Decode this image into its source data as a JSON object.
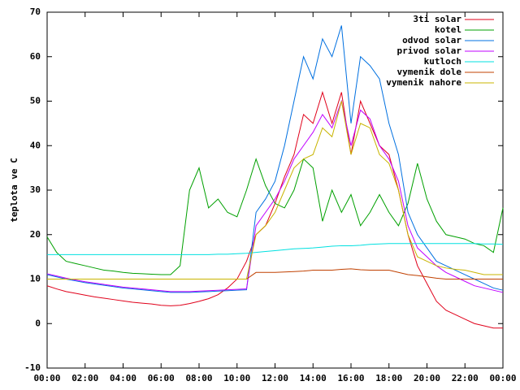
{
  "chart_data": {
    "type": "line",
    "ylabel": "teplota ve C",
    "legend": "top-right",
    "x": [
      0,
      0.5,
      1,
      1.5,
      2,
      2.5,
      3,
      3.5,
      4,
      4.5,
      5,
      5.5,
      6,
      6.5,
      7,
      7.5,
      8,
      8.5,
      9,
      9.5,
      10,
      10.5,
      11,
      11.5,
      12,
      12.5,
      13,
      13.5,
      14,
      14.5,
      15,
      15.5,
      16,
      16.5,
      17,
      17.5,
      18,
      18.5,
      19,
      19.5,
      20,
      20.5,
      21,
      21.5,
      22,
      22.5,
      23,
      23.5,
      24
    ],
    "xlim": [
      0,
      24
    ],
    "xticks": [
      {
        "value": 0,
        "label": "00:00"
      },
      {
        "value": 2,
        "label": "02:00"
      },
      {
        "value": 4,
        "label": "04:00"
      },
      {
        "value": 6,
        "label": "06:00"
      },
      {
        "value": 8,
        "label": "08:00"
      },
      {
        "value": 10,
        "label": "10:00"
      },
      {
        "value": 12,
        "label": "12:00"
      },
      {
        "value": 14,
        "label": "14:00"
      },
      {
        "value": 16,
        "label": "16:00"
      },
      {
        "value": 18,
        "label": "18:00"
      },
      {
        "value": 20,
        "label": "20:00"
      },
      {
        "value": 22,
        "label": "22:00"
      },
      {
        "value": 24,
        "label": "00:00"
      }
    ],
    "ylim": [
      -10,
      70
    ],
    "yticks": [
      -10,
      0,
      10,
      20,
      30,
      40,
      50,
      60,
      70
    ],
    "series": [
      {
        "name": "3ti solar",
        "color": "#e0001a",
        "values": [
          8.5,
          7.8,
          7.2,
          6.8,
          6.4,
          6.0,
          5.7,
          5.4,
          5.1,
          4.8,
          4.6,
          4.4,
          4.1,
          4.0,
          4.1,
          4.5,
          5.0,
          5.6,
          6.5,
          8,
          10,
          14,
          20,
          22,
          27,
          33,
          38,
          47,
          45,
          52,
          45,
          52,
          38,
          50,
          45,
          40,
          38,
          30,
          20,
          13,
          9,
          5,
          3,
          2,
          1,
          0,
          -0.5,
          -1,
          -1
        ]
      },
      {
        "name": "kotel",
        "color": "#00a000",
        "values": [
          19.5,
          16,
          14,
          13.5,
          13,
          12.5,
          12,
          11.8,
          11.5,
          11.3,
          11.2,
          11.1,
          11,
          11,
          13,
          30,
          35,
          26,
          28,
          25,
          24,
          30,
          37,
          31,
          27,
          26,
          30,
          37,
          35,
          23,
          30,
          25,
          29,
          22,
          25,
          29,
          25,
          22,
          27,
          36,
          28,
          23,
          20,
          19.5,
          19,
          18,
          17.5,
          16,
          26
        ]
      },
      {
        "name": "odvod solar",
        "color": "#0070e0",
        "values": [
          11,
          10.5,
          10,
          9.6,
          9.2,
          8.9,
          8.6,
          8.3,
          8,
          7.8,
          7.6,
          7.4,
          7.2,
          7,
          7,
          7,
          7.1,
          7.2,
          7.3,
          7.4,
          7.5,
          7.6,
          25,
          28,
          32,
          40,
          50,
          60,
          55,
          64,
          60,
          67,
          45,
          60,
          58,
          55,
          45,
          38,
          25,
          20,
          17,
          14,
          13,
          12,
          11,
          10,
          9,
          8,
          7.5
        ]
      },
      {
        "name": "privod solar",
        "color": "#c000ff",
        "values": [
          11.2,
          10.7,
          10.2,
          9.8,
          9.4,
          9.1,
          8.8,
          8.5,
          8.2,
          8,
          7.8,
          7.6,
          7.4,
          7.2,
          7.2,
          7.2,
          7.3,
          7.4,
          7.5,
          7.6,
          7.7,
          7.8,
          22,
          25,
          28,
          32,
          37,
          40,
          43,
          47,
          44,
          50,
          40,
          48,
          46,
          40,
          37,
          32,
          22,
          17,
          15,
          13,
          11.5,
          10.5,
          9.5,
          8.5,
          8,
          7.5,
          7
        ]
      },
      {
        "name": "kutloch",
        "color": "#00e0e0",
        "values": [
          15.5,
          15.5,
          15.5,
          15.5,
          15.5,
          15.5,
          15.5,
          15.5,
          15.5,
          15.5,
          15.5,
          15.5,
          15.5,
          15.5,
          15.5,
          15.5,
          15.5,
          15.5,
          15.6,
          15.6,
          15.7,
          15.8,
          16,
          16.2,
          16.4,
          16.6,
          16.8,
          16.9,
          17,
          17.2,
          17.4,
          17.5,
          17.5,
          17.6,
          17.8,
          17.9,
          18,
          18,
          18,
          18,
          18,
          18,
          18,
          18,
          18,
          18,
          17.9,
          17.9,
          17.8
        ]
      },
      {
        "name": "vymenik dole",
        "color": "#c04000",
        "values": [
          10,
          10,
          10,
          10,
          10,
          10,
          10,
          10,
          10,
          10,
          10,
          10,
          10,
          10,
          10,
          10,
          10,
          10,
          10,
          10,
          10,
          10,
          11.5,
          11.5,
          11.5,
          11.6,
          11.7,
          11.8,
          12,
          12,
          12,
          12.2,
          12.3,
          12.1,
          12,
          12,
          12,
          11.5,
          11,
          10.8,
          10.5,
          10.2,
          10,
          10,
          10,
          10,
          10,
          10,
          10
        ]
      },
      {
        "name": "vymenik nahore",
        "color": "#c8b400",
        "values": [
          10,
          10,
          10,
          10,
          10,
          10,
          10,
          10,
          10,
          10,
          10,
          10,
          10,
          10,
          10,
          10,
          10,
          10,
          10,
          10,
          10,
          10,
          20,
          22,
          25,
          30,
          35,
          37,
          38,
          44,
          42,
          50,
          38,
          45,
          44,
          38,
          36,
          30,
          20,
          15,
          14,
          13,
          12.5,
          12.2,
          12,
          11.5,
          11,
          11,
          11
        ]
      }
    ]
  }
}
